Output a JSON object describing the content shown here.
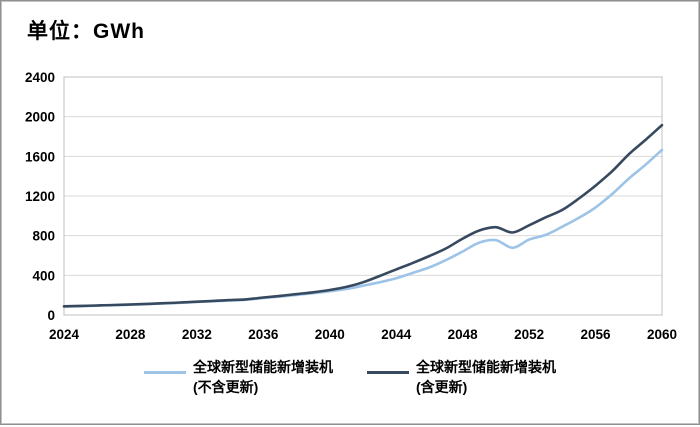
{
  "title": "单位：GWh",
  "colors": {
    "series_no_replacement": "#9DC3E6",
    "series_with_replacement": "#36495E",
    "gridline": "#D9D9D9",
    "plot_border": "#C0C0C0",
    "axis_line": "#9E9E9E",
    "tick_text": "#000000",
    "frame_border": "#C3C3C3"
  },
  "legend": {
    "entries": [
      {
        "line1": "全球新型储能新增装机",
        "line2": "(不含更新)"
      },
      {
        "line1": "全球新型储能新增装机",
        "line2": "(含更新)"
      }
    ]
  },
  "chart_data": {
    "type": "line",
    "title": "单位：GWh",
    "xlabel": "",
    "ylabel": "GWh",
    "grid": "horizontal",
    "legend_position": "bottom",
    "x": [
      2024,
      2025,
      2026,
      2027,
      2028,
      2029,
      2030,
      2031,
      2032,
      2033,
      2034,
      2035,
      2036,
      2037,
      2038,
      2039,
      2040,
      2041,
      2042,
      2043,
      2044,
      2045,
      2046,
      2047,
      2048,
      2049,
      2050,
      2051,
      2052,
      2053,
      2054,
      2055,
      2056,
      2057,
      2058,
      2059,
      2060
    ],
    "xticks": [
      2024,
      2028,
      2032,
      2036,
      2040,
      2044,
      2048,
      2052,
      2056,
      2060
    ],
    "ylim": [
      0,
      2400
    ],
    "yticks": [
      0,
      400,
      800,
      1200,
      1600,
      2000,
      2400
    ],
    "series": [
      {
        "name": "全球新型储能新增装机(不含更新)",
        "label_line1": "全球新型储能新增装机",
        "label_line2": "(不含更新)",
        "color": "#9DC3E6",
        "values": [
          85,
          89,
          94,
          99,
          104,
          110,
          116,
          123,
          131,
          139,
          146,
          154,
          170,
          186,
          203,
          220,
          240,
          262,
          295,
          330,
          370,
          425,
          480,
          555,
          640,
          730,
          755,
          678,
          760,
          808,
          890,
          980,
          1085,
          1220,
          1375,
          1515,
          1665
        ]
      },
      {
        "name": "全球新型储能新增装机(含更新)",
        "label_line1": "全球新型储能新增装机",
        "label_line2": "(含更新)",
        "color": "#36495E",
        "values": [
          88,
          92,
          96,
          101,
          106,
          112,
          119,
          126,
          134,
          142,
          150,
          158,
          176,
          193,
          211,
          229,
          252,
          283,
          330,
          393,
          460,
          525,
          595,
          672,
          770,
          852,
          885,
          832,
          905,
          985,
          1060,
          1175,
          1305,
          1450,
          1620,
          1765,
          1915
        ]
      }
    ]
  }
}
